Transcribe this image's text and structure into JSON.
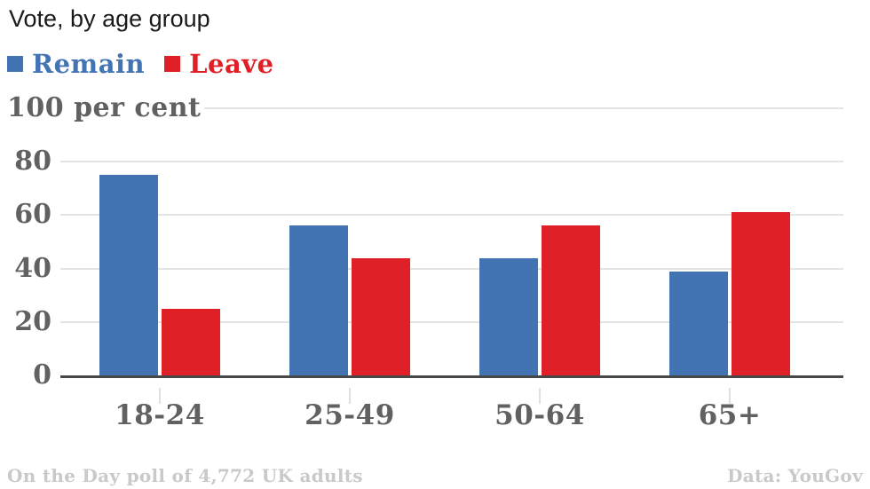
{
  "title": "Vote, by age group",
  "legend": {
    "items": [
      {
        "label": "Remain",
        "color": "#4274b4"
      },
      {
        "label": "Leave",
        "color": "#df2027"
      }
    ]
  },
  "chart_data": {
    "type": "bar",
    "categories": [
      "18-24",
      "25-49",
      "50-64",
      "65+"
    ],
    "series": [
      {
        "name": "Remain",
        "color": "#4274b4",
        "values": [
          75,
          56,
          44,
          39
        ]
      },
      {
        "name": "Leave",
        "color": "#df2027",
        "values": [
          25,
          44,
          56,
          61
        ]
      }
    ],
    "title": "Vote, by age group",
    "xlabel": "",
    "ylabel": "per cent",
    "top_tick_label": "100 per cent",
    "yticks": [
      0,
      20,
      40,
      60,
      80,
      100
    ],
    "ylim": [
      0,
      100
    ],
    "grid": true,
    "legend_position": "top-left"
  },
  "footer": {
    "note": "On the Day poll of 4,772 UK adults",
    "source": "Data: YouGov"
  },
  "colors": {
    "remain": "#4274b4",
    "leave": "#df2027",
    "axis_text": "#616161",
    "gridline": "#e4e4e4",
    "baseline": "#484848",
    "footer_text": "#c9c9c9"
  }
}
